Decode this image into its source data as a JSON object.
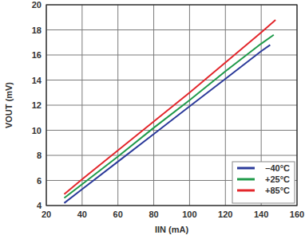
{
  "chart_data": {
    "type": "line",
    "x_label": "IIN (mA)",
    "y_label": "VOUT (mV)",
    "xlim": [
      20,
      160
    ],
    "xticks": [
      20,
      40,
      60,
      80,
      100,
      120,
      140,
      160
    ],
    "ylim": [
      4,
      20
    ],
    "yticks": [
      4,
      6,
      8,
      10,
      12,
      14,
      16,
      18,
      20
    ],
    "grid": true,
    "legend": "lower right",
    "series": [
      {
        "name": "–40°C",
        "color": "#2b3a9a",
        "x": [
          30,
          40,
          60,
          80,
          100,
          120,
          140,
          145
        ],
        "values": [
          4.2,
          5.3,
          7.5,
          9.7,
          11.9,
          14.1,
          16.3,
          16.8
        ]
      },
      {
        "name": "+25°C",
        "color": "#1f9a4a",
        "x": [
          30,
          40,
          60,
          80,
          100,
          120,
          140,
          147
        ],
        "values": [
          4.6,
          5.7,
          7.9,
          10.2,
          12.4,
          14.7,
          16.9,
          17.6
        ]
      },
      {
        "name": "+85°C",
        "color": "#e3262b",
        "x": [
          30,
          40,
          60,
          80,
          100,
          120,
          140,
          148
        ],
        "values": [
          4.9,
          6.1,
          8.4,
          10.7,
          13.0,
          15.4,
          17.8,
          18.8
        ]
      }
    ]
  }
}
